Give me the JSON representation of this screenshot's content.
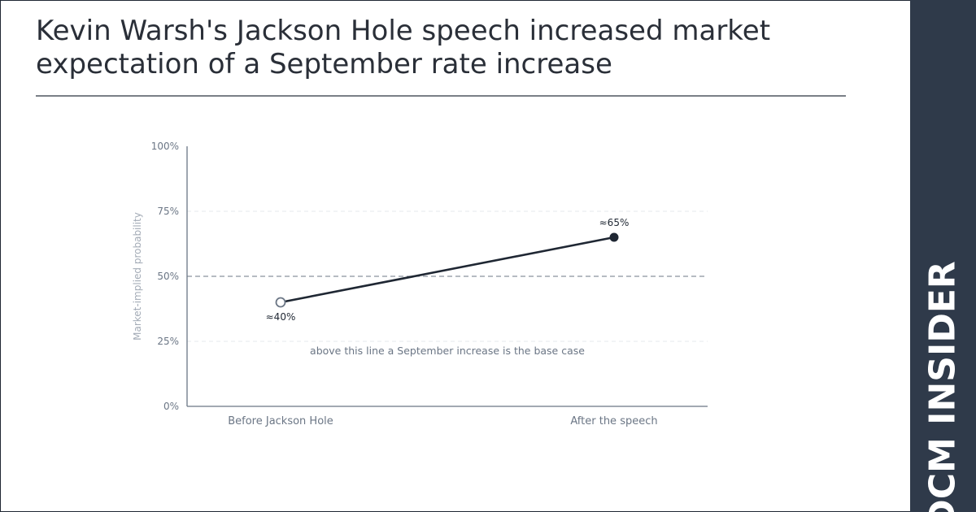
{
  "title": "Kevin Warsh's Jackson Hole speech increased market expectation of a September rate increase",
  "brand": "DCM INSIDER",
  "colors": {
    "brand_bar": "#2f3a4a",
    "line": "#1f2733",
    "axis": "#6b7685",
    "threshold": "#8a929e",
    "grid": "#e6e9ee"
  },
  "chart_data": {
    "type": "line",
    "categories": [
      "Before Jackson Hole",
      "After the speech"
    ],
    "series": [
      {
        "values": [
          40,
          65
        ],
        "data_labels": [
          "≈40%",
          "≈65%"
        ],
        "markers": [
          "hollow",
          "filled"
        ]
      }
    ],
    "ylabel": "Market-implied probability",
    "ylim": [
      0,
      100
    ],
    "yticks": [
      0,
      25,
      50,
      75,
      100
    ],
    "ytick_labels": [
      "0%",
      "25%",
      "50%",
      "75%",
      "100%"
    ],
    "grid": true,
    "threshold": {
      "value": 50,
      "annotation": "above this line a September increase is the base case"
    }
  }
}
